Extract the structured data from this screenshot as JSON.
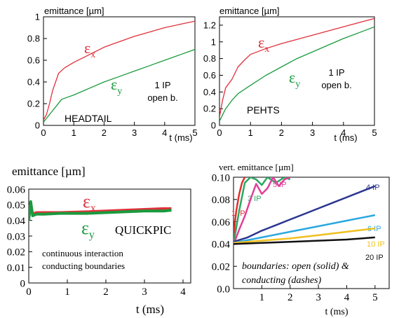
{
  "chart_data": [
    {
      "type": "line",
      "ylabel": "emittance [µm]",
      "xlabel": "t (ms)",
      "xlim": [
        0,
        5
      ],
      "ylim": [
        0,
        1
      ],
      "xticks": [
        "0",
        "1",
        "2",
        "3",
        "4",
        "5"
      ],
      "yticks": [
        "0",
        "0.2",
        "0.4",
        "0.6",
        "0.8",
        "1"
      ],
      "annotations": {
        "code": "HEADTAIL",
        "config_line1": "1 IP",
        "config_line2": "open b."
      },
      "series": [
        {
          "name": "εx",
          "color": "#e0303a",
          "x": [
            0,
            0.1,
            0.2,
            0.3,
            0.5,
            0.7,
            1,
            1.5,
            2,
            2.5,
            3,
            3.5,
            4,
            4.5,
            5
          ],
          "y": [
            0.05,
            0.1,
            0.2,
            0.32,
            0.48,
            0.53,
            0.58,
            0.65,
            0.72,
            0.77,
            0.82,
            0.86,
            0.9,
            0.93,
            0.96
          ]
        },
        {
          "name": "εy",
          "color": "#1a9a3e",
          "x": [
            0,
            0.2,
            0.4,
            0.6,
            1,
            1.5,
            2,
            2.5,
            3,
            3.5,
            4,
            4.5,
            5
          ],
          "y": [
            0.03,
            0.1,
            0.17,
            0.24,
            0.28,
            0.34,
            0.4,
            0.45,
            0.5,
            0.55,
            0.6,
            0.65,
            0.7
          ]
        }
      ]
    },
    {
      "type": "line",
      "ylabel": "emittance [µm]",
      "xlabel": "t (ms)",
      "xlim": [
        0,
        5
      ],
      "ylim": [
        0,
        1.3
      ],
      "xticks": [
        "0",
        "1",
        "2",
        "3",
        "4",
        "5"
      ],
      "yticks": [
        "0",
        "0.2",
        "0.4",
        "0.6",
        "0.8",
        "1",
        "1.2"
      ],
      "annotations": {
        "code": "PEHTS",
        "config_line1": "1 IP",
        "config_line2": "open b."
      },
      "series": [
        {
          "name": "εx",
          "color": "#e0303a",
          "x": [
            0,
            0.1,
            0.2,
            0.4,
            0.6,
            0.8,
            1,
            1.5,
            2,
            2.5,
            3,
            3.5,
            4,
            4.5,
            5
          ],
          "y": [
            0.1,
            0.3,
            0.45,
            0.55,
            0.7,
            0.78,
            0.85,
            0.92,
            0.98,
            1.03,
            1.08,
            1.13,
            1.18,
            1.23,
            1.28
          ]
        },
        {
          "name": "εy",
          "color": "#1a9a3e",
          "x": [
            0,
            0.2,
            0.4,
            0.6,
            1,
            1.5,
            2,
            2.5,
            3,
            3.5,
            4,
            4.5,
            5
          ],
          "y": [
            0.05,
            0.2,
            0.3,
            0.38,
            0.48,
            0.6,
            0.7,
            0.8,
            0.88,
            0.96,
            1.04,
            1.11,
            1.18
          ]
        }
      ]
    },
    {
      "type": "line",
      "ylabel": "emittance [µm]",
      "xlabel": "t (ms)",
      "xlim": [
        0,
        4.2
      ],
      "ylim": [
        0,
        0.06
      ],
      "xticks": [
        "0",
        "1",
        "2",
        "3",
        "4"
      ],
      "yticks": [
        "0",
        "0.01",
        "0.02",
        "0.03",
        "0.04",
        "0.05",
        "0.06"
      ],
      "annotations": {
        "code": "QUICKPIC",
        "note_line1": "continuous interaction",
        "note_line2": "conducting boundaries"
      },
      "series": [
        {
          "name": "εx",
          "color": "#e0303a",
          "x": [
            0,
            0.05,
            0.1,
            0.2,
            0.4,
            0.8,
            1.5,
            2,
            2.5,
            3,
            3.5,
            3.7
          ],
          "y": [
            0.046,
            0.051,
            0.044,
            0.045,
            0.045,
            0.045,
            0.0455,
            0.046,
            0.0465,
            0.047,
            0.0475,
            0.0475
          ]
        },
        {
          "name": "εy",
          "color": "#1a9a3e",
          "x": [
            0,
            0.05,
            0.1,
            0.2,
            0.4,
            0.8,
            1.5,
            2,
            2.5,
            3,
            3.5,
            3.7
          ],
          "y": [
            0.04,
            0.052,
            0.043,
            0.044,
            0.044,
            0.0445,
            0.0445,
            0.045,
            0.0455,
            0.046,
            0.046,
            0.0465
          ]
        }
      ]
    },
    {
      "type": "line",
      "ylabel": "vert. emittance [µm]",
      "xlabel": "t (ms)",
      "xlim": [
        0,
        5.5
      ],
      "ylim": [
        0,
        0.1
      ],
      "xticks": [
        "1",
        "2",
        "3",
        "4",
        "5"
      ],
      "yticks": [
        "0.0",
        "0.02",
        "0.04",
        "0.06",
        "0.08",
        "0.10"
      ],
      "annotations": {
        "note_line1": "boundaries: open (solid) &",
        "note_line2": "conducting (dashes)"
      },
      "series": [
        {
          "name": "1 IP",
          "color": "#e03030",
          "x": [
            0,
            0.05,
            0.1,
            0.2,
            0.3,
            0.4
          ],
          "y": [
            0.043,
            0.06,
            0.07,
            0.085,
            0.095,
            0.1
          ]
        },
        {
          "name": "3 IP",
          "color": "#2aa860",
          "x": [
            0,
            0.1,
            0.2,
            0.4,
            0.6,
            0.8,
            1,
            1.2,
            1.5,
            1.8,
            2
          ],
          "y": [
            0.04,
            0.055,
            0.07,
            0.095,
            0.1,
            0.098,
            0.093,
            0.1,
            0.095,
            0.1,
            0.098
          ]
        },
        {
          "name": "5 IP",
          "color": "#e0409a",
          "x": [
            0,
            0.1,
            0.2,
            0.4,
            0.6,
            0.8,
            1,
            1.2,
            1.4,
            1.6,
            1.8,
            2
          ],
          "y": [
            0.04,
            0.046,
            0.053,
            0.065,
            0.08,
            0.094,
            0.085,
            0.09,
            0.1,
            0.092,
            0.098,
            0.1
          ]
        },
        {
          "name": "4 IP",
          "color": "#2a3590",
          "x": [
            0,
            0.5,
            1,
            1.5,
            2,
            2.5,
            3,
            3.5,
            4,
            4.5,
            5
          ],
          "y": [
            0.042,
            0.046,
            0.052,
            0.057,
            0.062,
            0.067,
            0.072,
            0.077,
            0.082,
            0.087,
            0.092
          ]
        },
        {
          "name": "6 IP",
          "color": "#2aa8e0",
          "x": [
            0,
            1,
            2,
            3,
            4,
            5
          ],
          "y": [
            0.041,
            0.046,
            0.051,
            0.056,
            0.061,
            0.066
          ]
        },
        {
          "name": "10 IP",
          "color": "#f0c020",
          "x": [
            0,
            1,
            2,
            3,
            4,
            5
          ],
          "y": [
            0.041,
            0.043,
            0.045,
            0.048,
            0.051,
            0.054
          ]
        },
        {
          "name": "20 IP",
          "color": "#111111",
          "x": [
            0,
            1,
            2,
            3,
            4,
            5
          ],
          "y": [
            0.04,
            0.041,
            0.042,
            0.043,
            0.044,
            0.046
          ]
        }
      ]
    }
  ]
}
